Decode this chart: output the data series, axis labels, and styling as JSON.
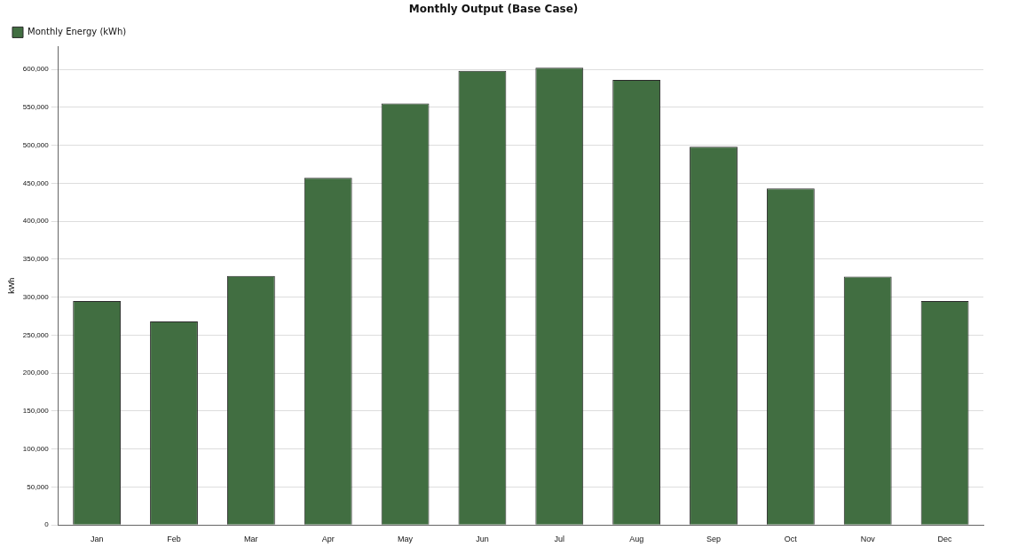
{
  "chart_data": {
    "type": "bar",
    "title": "Monthly Output (Base Case)",
    "ylabel": "kWh",
    "categories": [
      "Jan",
      "Feb",
      "Mar",
      "Apr",
      "May",
      "Jun",
      "Jul",
      "Aug",
      "Sep",
      "Oct",
      "Nov",
      "Dec"
    ],
    "series": [
      {
        "name": "Monthly Energy (kWh)",
        "color": "#416e41",
        "values": [
          295000,
          268000,
          328000,
          457000,
          555000,
          598000,
          602000,
          586000,
          498000,
          443000,
          327000,
          295000
        ]
      }
    ],
    "ylim": [
      0,
      630000
    ],
    "yticks": [
      0,
      {
        "value": 50000,
        "label": "50,000"
      },
      {
        "value": 100000,
        "label": "100,000"
      },
      {
        "value": 150000,
        "label": "150,000"
      },
      {
        "value": 200000,
        "label": "200,000"
      },
      {
        "value": 250000,
        "label": "250,000"
      },
      {
        "value": 300000,
        "label": "300,000"
      },
      {
        "value": 350000,
        "label": "350,000"
      },
      {
        "value": 400000,
        "label": "400,000"
      },
      {
        "value": 450000,
        "label": "450,000"
      },
      {
        "value": 500000,
        "label": "500,000"
      },
      {
        "value": 550000,
        "label": "550,000"
      },
      {
        "value": 600000,
        "label": "600,000"
      }
    ],
    "grid": "y",
    "legend": "top left"
  }
}
